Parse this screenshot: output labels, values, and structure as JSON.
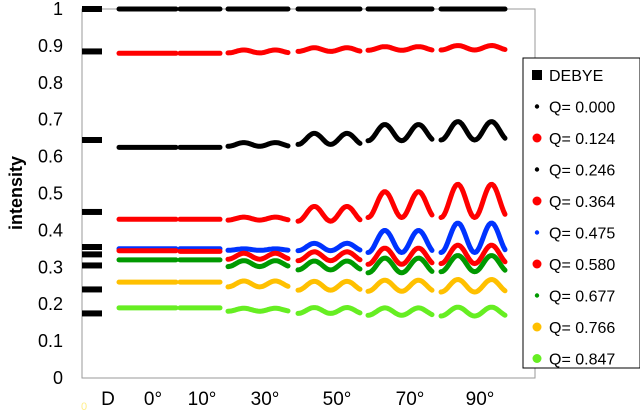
{
  "chart_data": {
    "type": "scatter",
    "ylabel": "intensity",
    "ylim": [
      0,
      1
    ],
    "y_ticks": [
      "0",
      "0.1",
      "0.2",
      "0.3",
      "0.4",
      "0.5",
      "0.6",
      "0.7",
      "0.8",
      "0.9",
      "1"
    ],
    "categories": [
      "D",
      "0°",
      "10°",
      "30°",
      "50°",
      "70°",
      "90°"
    ],
    "faint_left_label": "0",
    "grid": false,
    "legend_position": "right",
    "debye": {
      "name": "DEBYE",
      "color": "#000000",
      "values": [
        1.0,
        0.885,
        0.645,
        0.45,
        0.355,
        0.335,
        0.305,
        0.24,
        0.175
      ]
    },
    "series": [
      {
        "name": "Q= 0.000",
        "color": "#000000",
        "base": [
          1.0,
          1.0,
          1.0,
          1.0,
          1.0,
          1.0
        ],
        "amp": [
          0,
          0,
          0,
          0,
          0,
          0
        ]
      },
      {
        "name": "Q= 0.124",
        "color": "#ff0000",
        "base": [
          0.88,
          0.88,
          0.885,
          0.89,
          0.893,
          0.895
        ],
        "amp": [
          0,
          0,
          0.004,
          0.005,
          0.005,
          0.006
        ]
      },
      {
        "name": "Q= 0.246",
        "color": "#000000",
        "base": [
          0.625,
          0.625,
          0.633,
          0.648,
          0.665,
          0.67
        ],
        "amp": [
          0,
          0,
          0.005,
          0.015,
          0.022,
          0.025
        ]
      },
      {
        "name": "Q= 0.364",
        "color": "#ff0000",
        "base": [
          0.43,
          0.43,
          0.432,
          0.445,
          0.47,
          0.48
        ],
        "amp": [
          0,
          0,
          0.004,
          0.02,
          0.035,
          0.045
        ]
      },
      {
        "name": "Q= 0.475",
        "color": "#0033ff",
        "base": [
          0.35,
          0.35,
          0.348,
          0.355,
          0.37,
          0.38
        ],
        "amp": [
          0,
          0,
          0.002,
          0.01,
          0.03,
          0.04
        ]
      },
      {
        "name": "Q= 0.580",
        "color": "#ff0000",
        "base": [
          0.345,
          0.343,
          0.33,
          0.33,
          0.33,
          0.335
        ],
        "amp": [
          0,
          0,
          0.008,
          0.012,
          0.022,
          0.025
        ]
      },
      {
        "name": "Q= 0.677",
        "color": "#009900",
        "base": [
          0.32,
          0.32,
          0.31,
          0.305,
          0.305,
          0.31
        ],
        "amp": [
          0,
          0,
          0.008,
          0.012,
          0.02,
          0.022
        ]
      },
      {
        "name": "Q= 0.766",
        "color": "#ffc000",
        "base": [
          0.26,
          0.26,
          0.255,
          0.25,
          0.25,
          0.25
        ],
        "amp": [
          0,
          0,
          0.008,
          0.012,
          0.015,
          0.017
        ]
      },
      {
        "name": "Q= 0.847",
        "color": "#66ee22",
        "base": [
          0.19,
          0.19,
          0.185,
          0.183,
          0.18,
          0.18
        ],
        "amp": [
          0,
          0,
          0.004,
          0.008,
          0.01,
          0.012
        ]
      }
    ]
  }
}
